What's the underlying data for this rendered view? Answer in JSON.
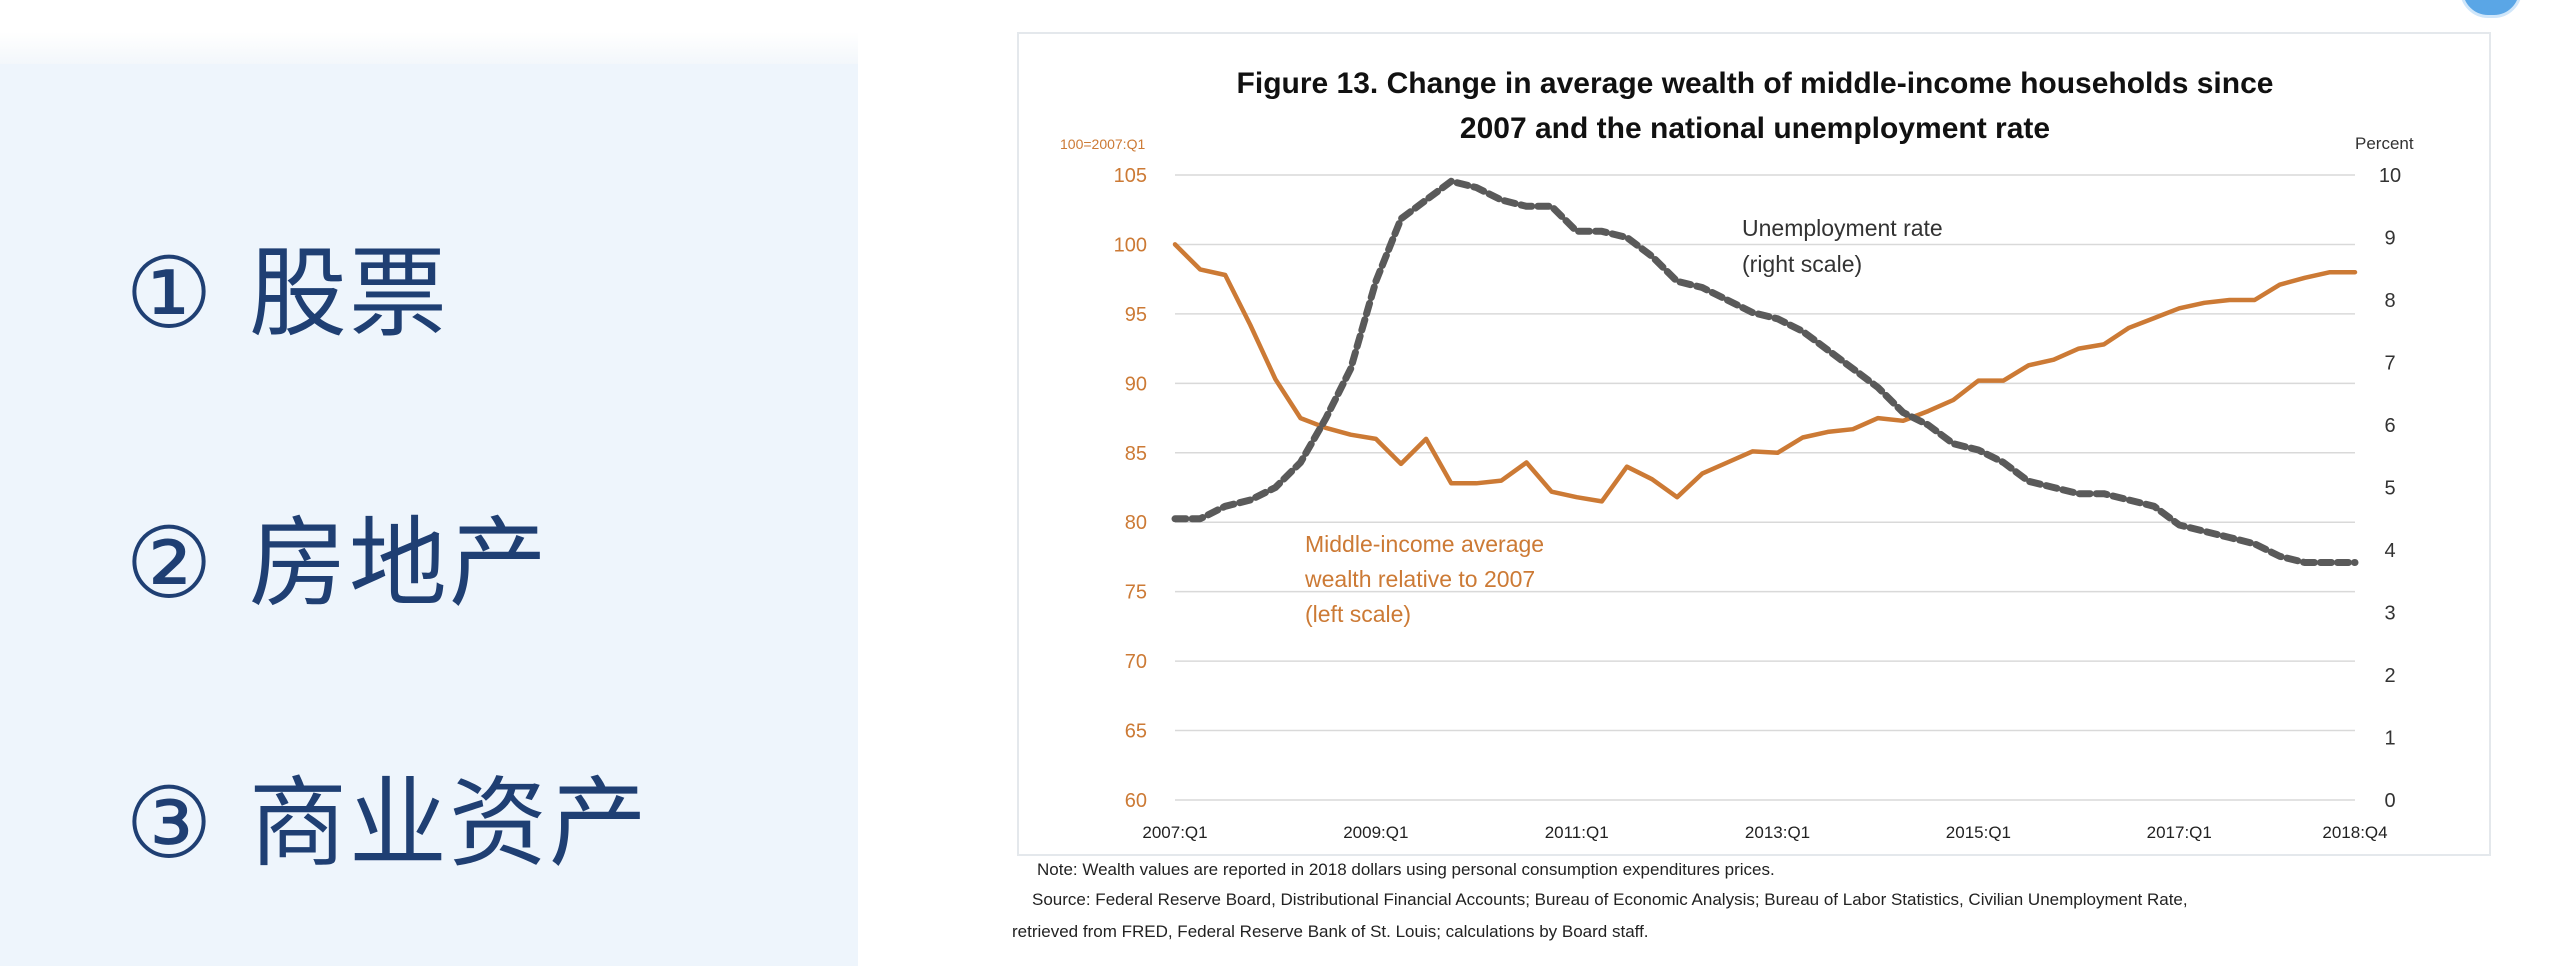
{
  "slide": {
    "items": [
      {
        "num": "①",
        "label": "股票"
      },
      {
        "num": "②",
        "label": "房地产"
      },
      {
        "num": "③",
        "label": "商业资产"
      }
    ]
  },
  "figure": {
    "title_line1": "Figure 13.  Change in average wealth of middle-income households since",
    "title_line2": "2007 and the national unemployment rate",
    "note": "Note:  Wealth values are reported in 2018 dollars using personal consumption expenditures prices.",
    "source_line1": "Source:  Federal Reserve Board, Distributional Financial Accounts; Bureau of Economic Analysis; Bureau of Labor Statistics, Civilian Unemployment Rate,",
    "source_line2": "retrieved from FRED, Federal Reserve Bank of St. Louis; calculations by Board staff."
  },
  "colors": {
    "wealth": "#cc7a35",
    "unemployment": "#5a5a5a",
    "grid": "#d9d9d9",
    "slide_text": "#1f3f73"
  },
  "chart_data": {
    "type": "line",
    "title": "Figure 13.  Change in average wealth of middle-income households since 2007 and the national unemployment rate",
    "left_axis_label": "100=2007:Q1",
    "right_axis_label": "Percent",
    "left_ylim": [
      60,
      105
    ],
    "left_ticks": [
      60,
      65,
      70,
      75,
      80,
      85,
      90,
      95,
      100,
      105
    ],
    "right_ylim": [
      0,
      10
    ],
    "right_ticks": [
      0,
      1,
      2,
      3,
      4,
      5,
      6,
      7,
      8,
      9,
      10
    ],
    "x_tick_labels": [
      "2007:Q1",
      "2009:Q1",
      "2011:Q1",
      "2013:Q1",
      "2015:Q1",
      "2017:Q1",
      "2018:Q4"
    ],
    "x_tick_index": [
      0,
      8,
      16,
      24,
      32,
      40,
      47
    ],
    "grid": "horizontal",
    "series": [
      {
        "name": "Middle-income average wealth relative to 2007 (left scale)",
        "label_lines": [
          "Middle-income average",
          "wealth relative to 2007",
          "(left scale)"
        ],
        "axis": "left",
        "style": "solid",
        "values": [
          100,
          98.2,
          97.8,
          94.2,
          90.3,
          87.5,
          86.8,
          86.3,
          86.0,
          84.2,
          86.0,
          82.8,
          82.8,
          83.0,
          84.3,
          82.2,
          81.8,
          81.5,
          84.0,
          83.1,
          81.8,
          83.5,
          84.3,
          85.1,
          85.0,
          86.1,
          86.5,
          86.7,
          87.5,
          87.3,
          88.0,
          88.8,
          90.2,
          90.2,
          91.3,
          91.7,
          92.5,
          92.8,
          94.0,
          94.7,
          95.4,
          95.8,
          96.0,
          96.0,
          97.1,
          97.6,
          98.0,
          98.0
        ]
      },
      {
        "name": "Unemployment rate (right scale)",
        "label_lines": [
          "Unemployment rate",
          "(right scale)"
        ],
        "axis": "right",
        "style": "dashed",
        "values": [
          4.5,
          4.5,
          4.7,
          4.8,
          5.0,
          5.4,
          6.1,
          6.9,
          8.3,
          9.3,
          9.6,
          9.9,
          9.8,
          9.6,
          9.5,
          9.5,
          9.1,
          9.1,
          9.0,
          8.7,
          8.3,
          8.2,
          8.0,
          7.8,
          7.7,
          7.5,
          7.2,
          6.9,
          6.6,
          6.2,
          6.0,
          5.7,
          5.6,
          5.4,
          5.1,
          5.0,
          4.9,
          4.9,
          4.8,
          4.7,
          4.4,
          4.3,
          4.2,
          4.1,
          3.9,
          3.8,
          3.8,
          3.8
        ]
      }
    ]
  }
}
